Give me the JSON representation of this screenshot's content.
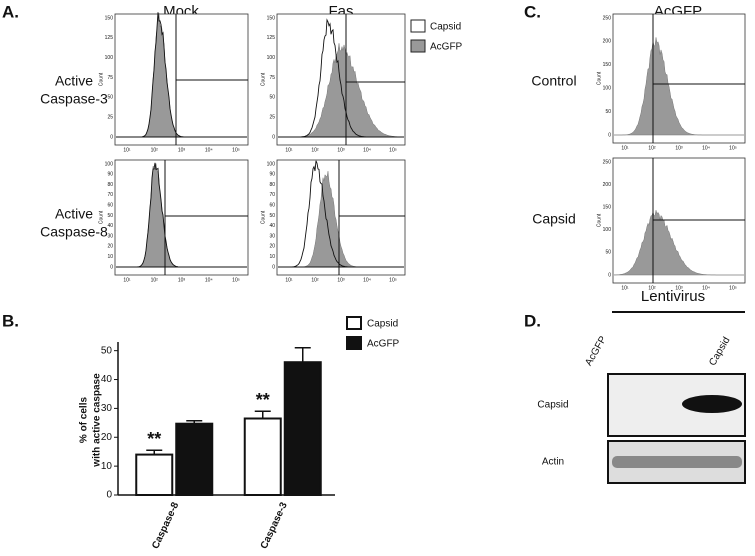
{
  "panel_labels": [
    "A.",
    "B.",
    "C.",
    "D."
  ],
  "panel_a": {
    "columns": [
      "Mock",
      "Fas"
    ],
    "rows": [
      [
        "Active",
        "Caspase-3"
      ],
      [
        "Active",
        "Caspase-8"
      ]
    ],
    "legend": [
      "Capsid",
      "AcGFP"
    ]
  },
  "panel_c": {
    "title": "AcGFP",
    "rows": [
      "Control",
      "Capsid"
    ]
  },
  "histogram_axes": {
    "y_label": "Count",
    "x_ticks": [
      "10¹",
      "10²",
      "10³",
      "10⁴",
      "10⁵"
    ],
    "y_ticks_caspase3": [
      0,
      25,
      50,
      75,
      100,
      125,
      150
    ],
    "y_ticks_caspase8": [
      0,
      10,
      20,
      30,
      40,
      50,
      60,
      70,
      80,
      90,
      100
    ],
    "y_ticks_c": [
      0,
      50,
      100,
      150,
      200,
      250
    ]
  },
  "chart_data": {
    "type": "bar",
    "y_label": [
      "% of cells",
      "with active caspase"
    ],
    "categories": [
      "Caspase-8",
      "Caspase-3"
    ],
    "series": [
      {
        "name": "Capsid",
        "color": "#ffffff",
        "values": [
          14,
          26.5
        ],
        "errors": [
          1.5,
          2.5
        ]
      },
      {
        "name": "AcGFP",
        "color": "#111111",
        "values": [
          24.7,
          46
        ],
        "errors": [
          1,
          5
        ]
      }
    ],
    "annotations": [
      "**",
      "**"
    ],
    "ylim": [
      0,
      53
    ],
    "yticks": [
      0,
      10,
      20,
      30,
      40,
      50
    ]
  },
  "panel_d": {
    "title": "Lentivirus",
    "lanes": [
      "AcGFP",
      "Capsid"
    ],
    "rows": [
      "Capsid",
      "Actin"
    ]
  }
}
